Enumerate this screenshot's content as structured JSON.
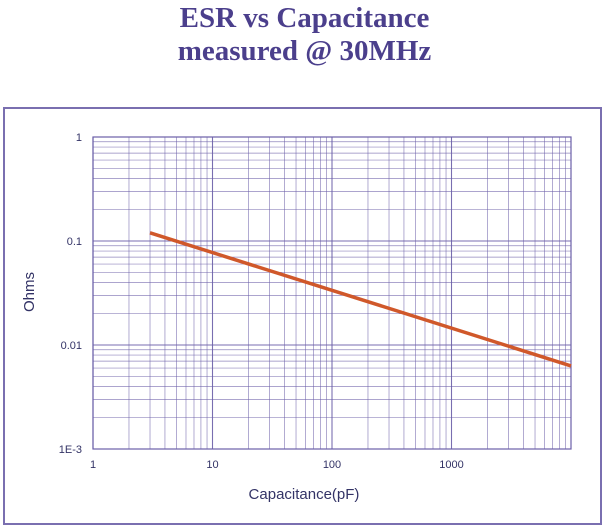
{
  "page": {
    "title_line1": "ESR vs Capacitance",
    "title_line2": "measured @ 30MHz"
  },
  "colors": {
    "title": "#4b3f8c",
    "frame": "#7a6fb0",
    "grid": "#6b5fa8",
    "series": "#d0582a",
    "tick_text": "#333366"
  },
  "chart_data": {
    "type": "line",
    "title": "",
    "xlabel": "Capacitance(pF)",
    "ylabel": "Ohms",
    "xscale": "log",
    "yscale": "log",
    "xlim": [
      1,
      10000
    ],
    "ylim": [
      0.001,
      1
    ],
    "grid": true,
    "x_tick_labels": [
      "1",
      "10",
      "100",
      "1000"
    ],
    "x_tick_values": [
      1,
      10,
      100,
      1000
    ],
    "y_tick_labels": [
      "1",
      "0.1",
      "0.01",
      "1E-3"
    ],
    "y_tick_values": [
      1,
      0.1,
      0.01,
      0.001
    ],
    "series": [
      {
        "x": [
          3,
          10000
        ],
        "y": [
          0.12,
          0.0063
        ]
      }
    ]
  }
}
